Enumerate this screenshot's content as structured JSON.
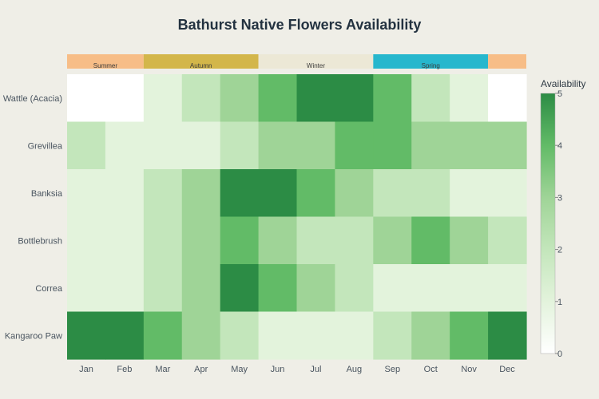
{
  "chart_data": {
    "type": "heatmap",
    "title": "Bathurst Native Flowers Availability",
    "xlabel": "",
    "ylabel": "",
    "x": [
      "Jan",
      "Feb",
      "Mar",
      "Apr",
      "May",
      "Jun",
      "Jul",
      "Aug",
      "Sep",
      "Oct",
      "Nov",
      "Dec"
    ],
    "y": [
      "Wattle (Acacia)",
      "Grevillea",
      "Banksia",
      "Bottlebrush",
      "Correa",
      "Kangaroo Paw"
    ],
    "z": [
      [
        0,
        0,
        1,
        2,
        3,
        4,
        5,
        5,
        4,
        2,
        1,
        0
      ],
      [
        2,
        1,
        1,
        1,
        2,
        3,
        3,
        4,
        4,
        3,
        3,
        3
      ],
      [
        1,
        1,
        2,
        3,
        5,
        5,
        4,
        3,
        2,
        2,
        1,
        1
      ],
      [
        1,
        1,
        2,
        3,
        4,
        3,
        2,
        2,
        3,
        4,
        3,
        2
      ],
      [
        1,
        1,
        2,
        3,
        5,
        4,
        3,
        2,
        1,
        1,
        1,
        1
      ],
      [
        5,
        5,
        4,
        3,
        2,
        1,
        1,
        1,
        2,
        3,
        4,
        5
      ]
    ],
    "zrange": [
      0,
      5
    ],
    "colorbar": {
      "title": "Availability",
      "ticks": [
        0,
        1,
        2,
        3,
        4,
        5
      ],
      "colors": [
        "#ffffff",
        "#e3f3dc",
        "#c3e6bb",
        "#9fd497",
        "#62bb67",
        "#2c8c45"
      ]
    },
    "seasons": [
      {
        "name": "Summer",
        "start": 0,
        "end": 2,
        "color": "#f7bd87",
        "show_label": true
      },
      {
        "name": "Autumn",
        "start": 2,
        "end": 5,
        "color": "#d3b64a",
        "show_label": true
      },
      {
        "name": "Winter",
        "start": 5,
        "end": 8,
        "color": "#ece8d6",
        "show_label": true
      },
      {
        "name": "Spring",
        "start": 8,
        "end": 11,
        "color": "#27b7cd",
        "show_label": true
      },
      {
        "name": "Summer",
        "start": 11,
        "end": 12,
        "color": "#f7bd87",
        "show_label": false
      }
    ]
  }
}
